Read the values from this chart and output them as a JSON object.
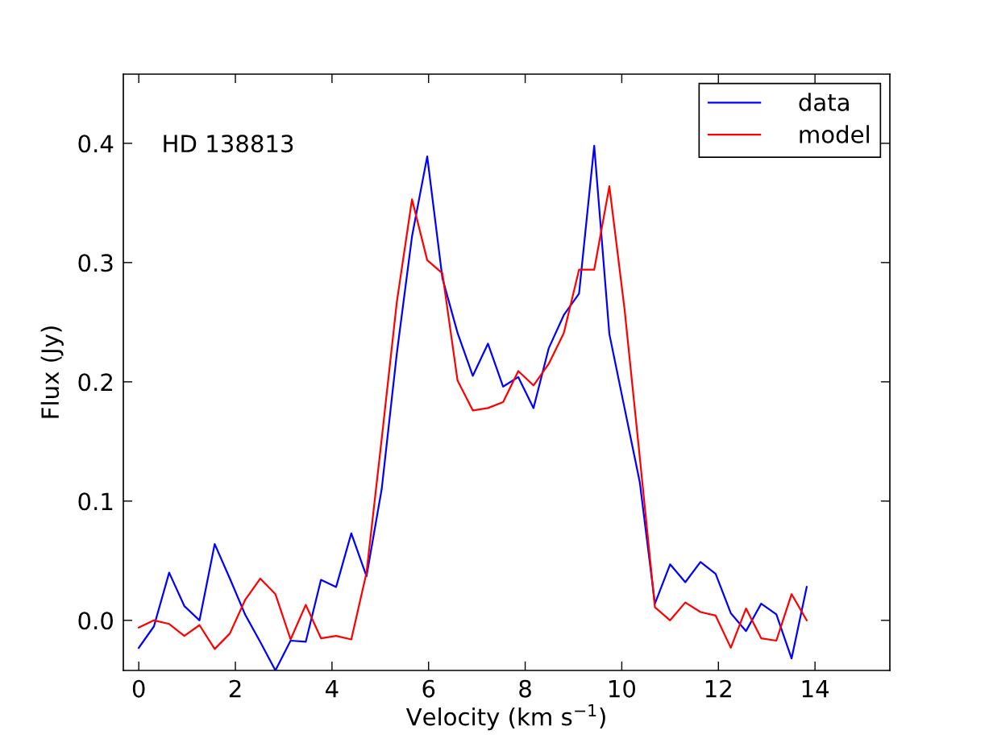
{
  "chart_data": {
    "type": "line",
    "xlabel": "Velocity (km s$^{−1}$)",
    "ylabel": "Flux (Jy)",
    "annotations": [
      "HD 138813"
    ],
    "x": [
      0,
      0.314,
      0.629,
      0.943,
      1.257,
      1.572,
      1.886,
      2.2,
      2.514,
      2.829,
      3.143,
      3.457,
      3.772,
      4.086,
      4.4,
      4.715,
      5.029,
      5.343,
      5.657,
      5.972,
      6.286,
      6.6,
      6.915,
      7.229,
      7.543,
      7.857,
      8.172,
      8.486,
      8.8,
      9.115,
      9.429,
      9.743,
      10.057,
      10.372,
      10.686,
      11.0,
      11.315,
      11.629,
      11.943,
      12.257,
      12.572,
      12.886,
      13.2,
      13.515,
      13.829
    ],
    "series": [
      {
        "name": "data",
        "color": "#0000ff",
        "values": [
          -0.023,
          -0.005,
          0.04,
          0.012,
          0.0,
          0.064,
          0.035,
          0.005,
          -0.018,
          -0.042,
          -0.017,
          -0.018,
          0.034,
          0.028,
          0.073,
          0.037,
          0.11,
          0.224,
          0.322,
          0.389,
          0.287,
          0.241,
          0.205,
          0.232,
          0.196,
          0.204,
          0.178,
          0.228,
          0.256,
          0.274,
          0.398,
          0.24,
          0.178,
          0.116,
          0.014,
          0.047,
          0.032,
          0.049,
          0.039,
          0.006,
          -0.009,
          0.014,
          0.005,
          -0.032,
          0.028
        ]
      },
      {
        "name": "model",
        "color": "#ff0000",
        "values": [
          -0.006,
          0.0,
          -0.003,
          -0.013,
          -0.004,
          -0.024,
          -0.011,
          0.017,
          0.035,
          0.022,
          -0.016,
          0.013,
          -0.015,
          -0.013,
          -0.016,
          0.04,
          0.152,
          0.267,
          0.353,
          0.302,
          0.291,
          0.201,
          0.176,
          0.178,
          0.183,
          0.209,
          0.197,
          0.215,
          0.241,
          0.294,
          0.294,
          0.364,
          0.261,
          0.137,
          0.011,
          0.0,
          0.015,
          0.007,
          0.004,
          -0.023,
          0.01,
          -0.015,
          -0.017,
          0.022,
          0.0
        ]
      }
    ],
    "xlim": [
      -0.32,
      15.55
    ],
    "ylim": [
      -0.042,
      0.458
    ],
    "xticks": [
      0,
      2,
      4,
      6,
      8,
      10,
      12,
      14
    ],
    "yticks": [
      {
        "value": 0,
        "label": "0.0"
      },
      {
        "value": 0.1,
        "label": "0.1"
      },
      {
        "value": 0.2,
        "label": "0.2"
      },
      {
        "value": 0.3,
        "label": "0.3"
      },
      {
        "value": 0.4,
        "label": "0.4"
      }
    ],
    "legend": "top right",
    "grid": false,
    "line_style": "solid",
    "marker": "none"
  }
}
